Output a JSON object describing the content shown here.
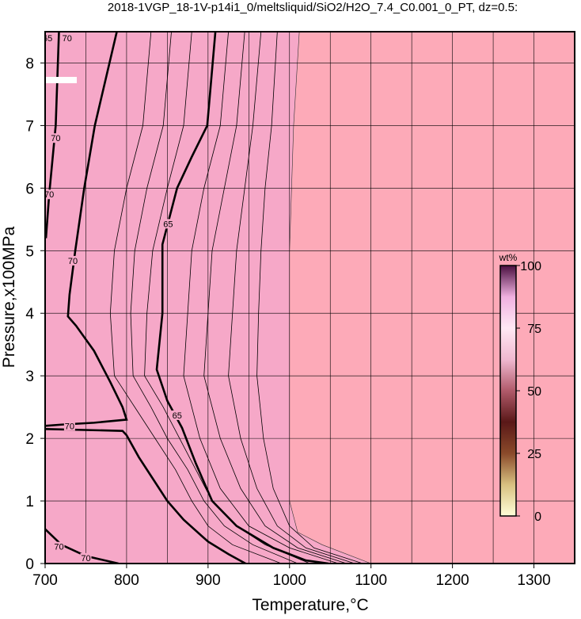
{
  "chart_data": {
    "type": "contour",
    "title": "2018-1VGP_18-1V-p14i1_0/meltsliquid/SiO2/H2O_7.4_C0.001_0_PT, dz=0.5:",
    "x_label": "Temperature,°C",
    "y_label": "Pressure,x100MPa",
    "xlim": [
      700,
      1350
    ],
    "ylim": [
      0,
      8.5
    ],
    "xticks": [
      700,
      800,
      900,
      1000,
      1100,
      1200,
      1300
    ],
    "x_minor_grid": [
      750,
      850,
      950,
      1050,
      1150,
      1250
    ],
    "yticks": [
      0,
      1,
      2,
      3,
      4,
      5,
      6,
      7,
      8
    ],
    "grid": true,
    "background_color": "#fdaab8",
    "region": {
      "color": "#f6a8c8",
      "x": [
        1012,
        1005,
        1000,
        1000,
        1000,
        1010,
        1040,
        1100
      ],
      "y": [
        8.5,
        7,
        5,
        3,
        1,
        0.5,
        0.3,
        0
      ]
    },
    "contours": [
      {
        "level": 70,
        "bold": true,
        "x": [
          788,
          779,
          761,
          748,
          737,
          730,
          728,
          738,
          760,
          780,
          795,
          800,
          760,
          720,
          700
        ],
        "y": [
          8.5,
          8,
          7,
          6,
          5,
          4.3,
          3.95,
          3.8,
          3.4,
          2.9,
          2.5,
          2.3,
          2.25,
          2.22,
          2.2
        ]
      },
      {
        "level": 70,
        "bold": true,
        "x": [
          700,
          795,
          800,
          815,
          830,
          850,
          870,
          900,
          925,
          946
        ],
        "y": [
          2.15,
          2.12,
          2.05,
          1.7,
          1.4,
          1.0,
          0.7,
          0.35,
          0.15,
          0
        ]
      },
      {
        "level": 65,
        "bold": true,
        "x": [
          909,
          899,
          880,
          862,
          844,
          844,
          837,
          850,
          868,
          885,
          905,
          935,
          980,
          1020,
          1048
        ],
        "y": [
          8.5,
          7,
          6.5,
          6,
          5.1,
          4,
          3.1,
          2.6,
          2.17,
          1.6,
          1.0,
          0.6,
          0.25,
          0.05,
          0
        ]
      },
      {
        "level": 70,
        "bold": true,
        "x": [
          717,
          713,
          705,
          701
        ],
        "y": [
          8.5,
          7,
          5.9,
          5.2
        ]
      },
      {
        "level": 70,
        "bold": true,
        "x": [
          700,
          720,
          750,
          790
        ],
        "y": [
          0.55,
          0.3,
          0.12,
          0
        ]
      },
      {
        "level": 68,
        "bold": false,
        "x": [
          830,
          820,
          800,
          785,
          780,
          785,
          810,
          835,
          860,
          880,
          900,
          930,
          990
        ],
        "y": [
          8.5,
          7,
          6,
          5,
          4,
          3,
          2.5,
          2.0,
          1.5,
          1.0,
          0.6,
          0.3,
          0
        ]
      },
      {
        "level": 67,
        "bold": false,
        "x": [
          855,
          845,
          825,
          810,
          805,
          808,
          830,
          850,
          875,
          895,
          920,
          955,
          1010
        ],
        "y": [
          8.5,
          7,
          6,
          5,
          4,
          3,
          2.5,
          2.0,
          1.5,
          1.0,
          0.6,
          0.3,
          0
        ]
      },
      {
        "level": 66,
        "bold": false,
        "x": [
          880,
          870,
          850,
          832,
          825,
          822,
          845,
          865,
          885,
          905,
          935,
          970,
          1025
        ],
        "y": [
          8.5,
          7,
          6,
          5,
          4,
          3,
          2.5,
          2.0,
          1.5,
          1.0,
          0.6,
          0.3,
          0
        ]
      },
      {
        "level": 64,
        "bold": false,
        "x": [
          925,
          915,
          895,
          880,
          875,
          870,
          890,
          915,
          950,
          1000,
          1060
        ],
        "y": [
          8.5,
          7,
          6,
          5,
          4,
          3,
          2,
          1.2,
          0.6,
          0.25,
          0
        ]
      },
      {
        "level": 63,
        "bold": false,
        "x": [
          945,
          935,
          920,
          905,
          900,
          895,
          915,
          940,
          970,
          1010,
          1070
        ],
        "y": [
          8.5,
          7,
          6,
          5,
          4,
          3,
          2,
          1.2,
          0.6,
          0.25,
          0
        ]
      },
      {
        "level": 62,
        "bold": false,
        "x": [
          965,
          955,
          945,
          935,
          930,
          925,
          940,
          960,
          985,
          1020,
          1080
        ],
        "y": [
          8.5,
          7,
          6,
          5,
          4,
          3,
          2,
          1.2,
          0.6,
          0.25,
          0
        ]
      },
      {
        "level": 61,
        "bold": false,
        "x": [
          985,
          978,
          970,
          965,
          962,
          960,
          968,
          980,
          1000,
          1030,
          1090
        ],
        "y": [
          8.5,
          7,
          6,
          5,
          4,
          3,
          2,
          1.2,
          0.6,
          0.25,
          0
        ]
      }
    ],
    "contour_labels": [
      {
        "text": "65",
        "x": 703,
        "y": 8.4
      },
      {
        "text": "70",
        "x": 727,
        "y": 8.4
      },
      {
        "text": "70",
        "x": 713,
        "y": 6.8
      },
      {
        "text": "70",
        "x": 705,
        "y": 5.9
      },
      {
        "text": "70",
        "x": 734,
        "y": 4.84
      },
      {
        "text": "65",
        "x": 851,
        "y": 5.43
      },
      {
        "text": "70",
        "x": 730,
        "y": 2.2
      },
      {
        "text": "65",
        "x": 862,
        "y": 2.37
      },
      {
        "text": "70",
        "x": 717,
        "y": 0.27
      },
      {
        "text": "70",
        "x": 750,
        "y": 0.09
      }
    ],
    "colorbar": {
      "label": "wt%",
      "lim": [
        0,
        100
      ],
      "ticks": [
        0,
        25,
        50,
        75,
        100
      ],
      "colors": [
        "#ffffd8",
        "#d8c080",
        "#8a4a2a",
        "#5a1818",
        "#b05a6a",
        "#f0b8d0",
        "#ffe8f4",
        "#f0b0e0",
        "#4a1040"
      ]
    }
  }
}
